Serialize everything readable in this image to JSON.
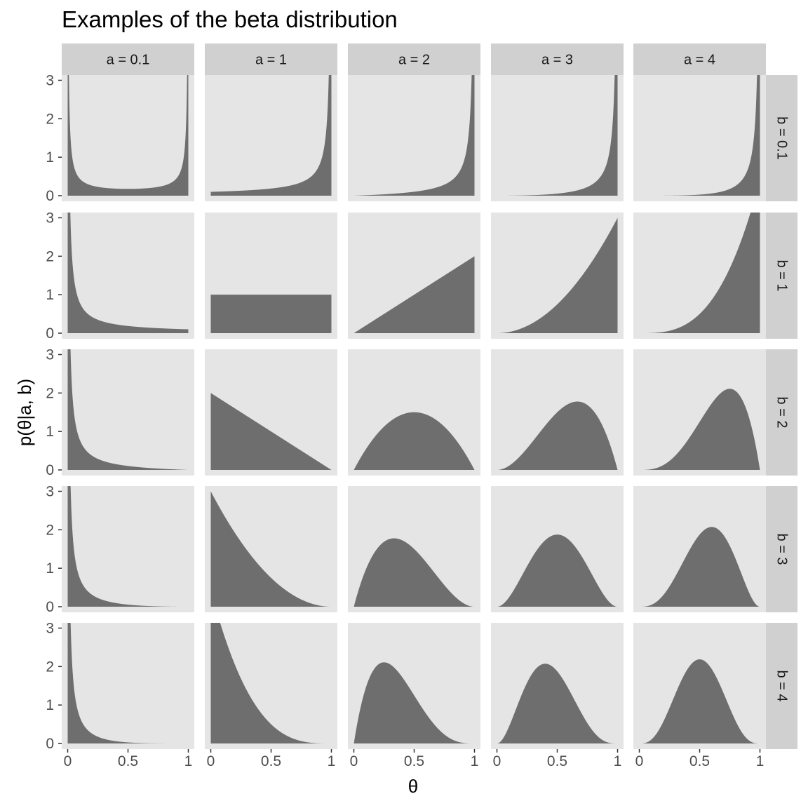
{
  "chart_data": {
    "type": "area",
    "title": "Examples of the beta distribution",
    "xlabel": "θ",
    "ylabel": "p(θ|a, b)",
    "xlim": [
      0,
      1
    ],
    "ylim": [
      0,
      3.1
    ],
    "x_ticks": [
      0,
      0.5,
      1
    ],
    "x_tick_labels": [
      "0",
      "0.5",
      "1"
    ],
    "y_ticks": [
      0,
      1,
      2,
      3
    ],
    "y_tick_labels": [
      "0",
      "1",
      "2",
      "3"
    ],
    "columns": [
      {
        "a": 0.1,
        "label": "a = 0.1"
      },
      {
        "a": 1,
        "label": "a = 1"
      },
      {
        "a": 2,
        "label": "a = 2"
      },
      {
        "a": 3,
        "label": "a = 3"
      },
      {
        "a": 4,
        "label": "a = 4"
      }
    ],
    "rows": [
      {
        "b": 0.1,
        "label": "b = 0.1"
      },
      {
        "b": 1,
        "label": "b = 1"
      },
      {
        "b": 2,
        "label": "b = 2"
      },
      {
        "b": 3,
        "label": "b = 3"
      },
      {
        "b": 4,
        "label": "b = 4"
      }
    ],
    "function": "beta density",
    "grid": false,
    "colors": {
      "fill": "#6e6e6e",
      "panel_background": "#e5e5e5",
      "strip_background": "#d0d0d0",
      "tick_text": "#4d4d4d"
    }
  }
}
